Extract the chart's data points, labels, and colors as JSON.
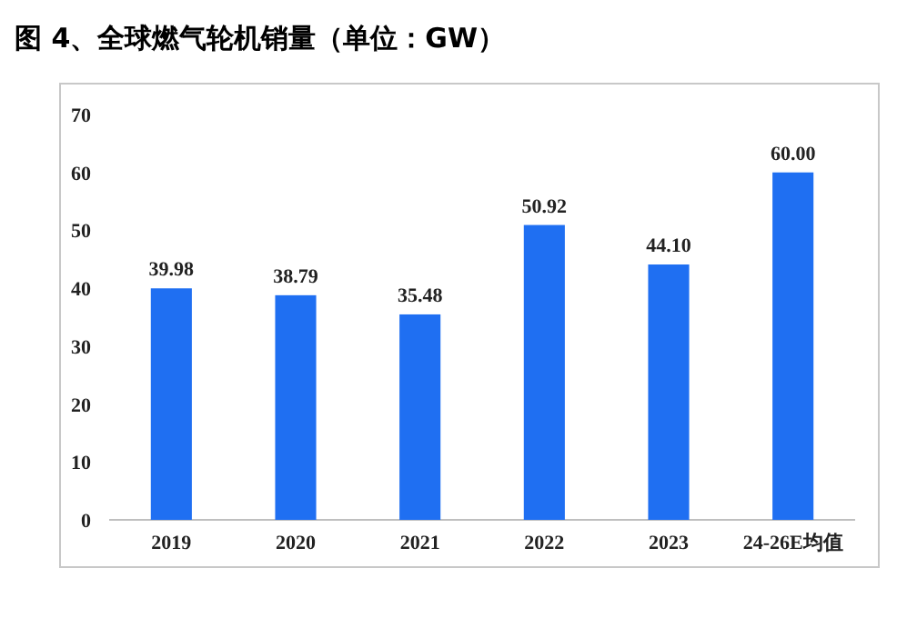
{
  "chart_data": {
    "type": "bar",
    "title": "图 4、全球燃气轮机销量（单位：GW）",
    "categories": [
      "2019",
      "2020",
      "2021",
      "2022",
      "2023",
      "24-26E均值"
    ],
    "values": [
      39.98,
      38.79,
      35.48,
      50.92,
      44.1,
      60.0
    ],
    "value_labels": [
      "39.98",
      "38.79",
      "35.48",
      "50.92",
      "44.10",
      "60.00"
    ],
    "color": "#1f6ff2",
    "ylim": [
      0,
      70
    ],
    "yticks": [
      0,
      10,
      20,
      30,
      40,
      50,
      60,
      70
    ]
  }
}
